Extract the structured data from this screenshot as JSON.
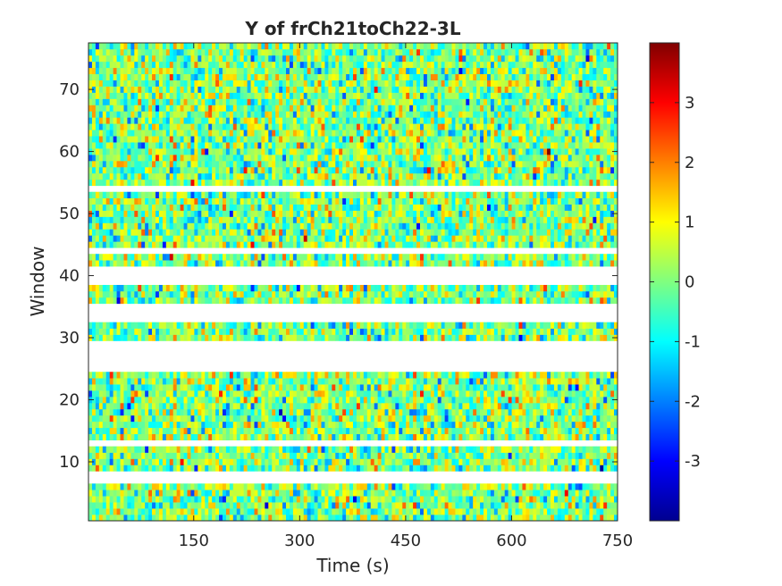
{
  "chart_data": {
    "type": "heatmap",
    "title": "Y of frCh21toCh22-3L",
    "xlabel": "Time (s)",
    "ylabel": "Window",
    "xlim": [
      1,
      750
    ],
    "ylim": [
      0.5,
      77.5
    ],
    "x_ticks": [
      150,
      300,
      450,
      600,
      750
    ],
    "y_ticks": [
      10,
      20,
      30,
      40,
      50,
      60,
      70
    ],
    "colormap": "jet",
    "clim": [
      -4,
      4
    ],
    "colorbar_ticks": [
      3,
      2,
      1,
      0,
      -1,
      -2,
      -3
    ],
    "time_bins": 150,
    "windows": 77,
    "missing_windows": [
      7,
      8,
      13,
      25,
      26,
      27,
      28,
      29,
      33,
      34,
      35,
      39,
      40,
      41,
      44,
      54
    ],
    "value_distribution": "approximately standard normal noise (mean 0, sd 1) in every window and time bin",
    "grid": false,
    "colorbar_position": "right"
  }
}
